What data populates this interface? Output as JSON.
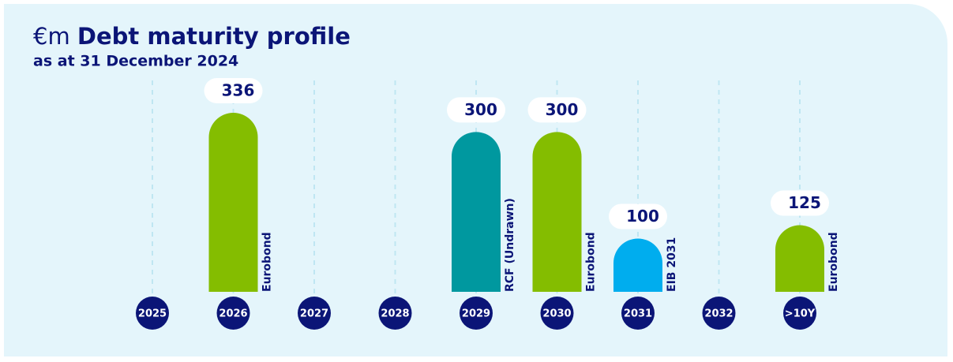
{
  "chart_data": {
    "type": "bar",
    "title_prefix": "€m",
    "title": "Debt maturity profile",
    "subtitle": "as at 31 December 2024",
    "categories": [
      "2025",
      "2026",
      "2027",
      "2028",
      "2029",
      "2030",
      "2031",
      "2032",
      ">10Y"
    ],
    "values": [
      null,
      336,
      null,
      null,
      300,
      300,
      100,
      null,
      125
    ],
    "bar_labels": [
      null,
      "Eurobond",
      null,
      null,
      "RCF (Undrawn)",
      "Eurobond",
      "EIB 2031",
      null,
      "Eurobond"
    ],
    "colors": [
      null,
      "#84bd00",
      null,
      null,
      "#00989f",
      "#84bd00",
      "#00adee",
      null,
      "#84bd00"
    ]
  }
}
